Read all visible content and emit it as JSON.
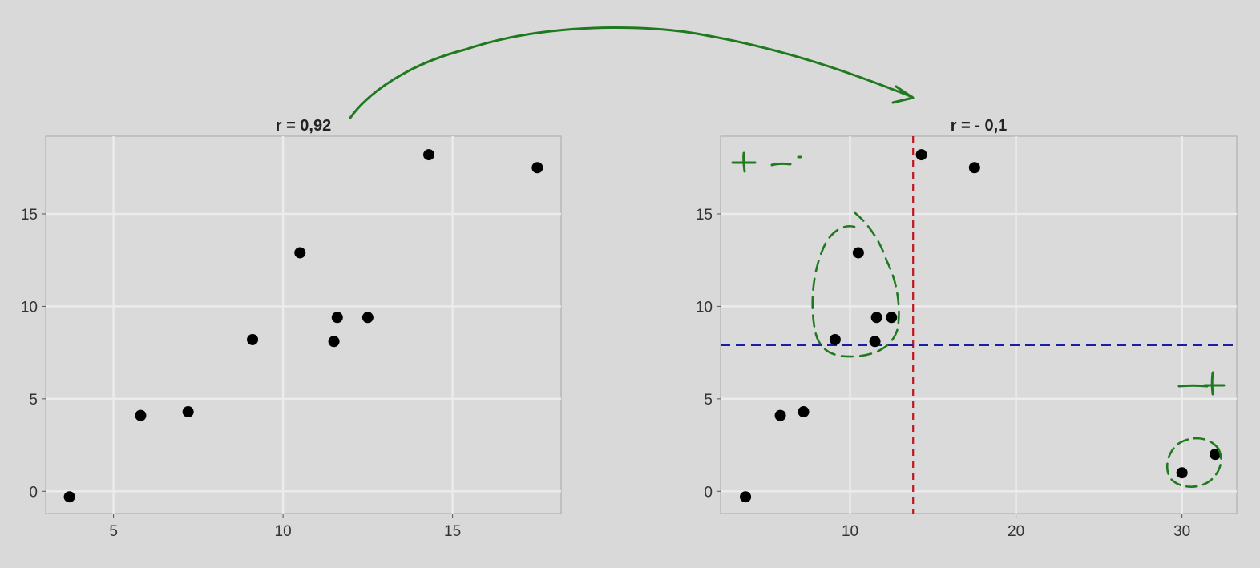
{
  "colors": {
    "background": "#d9d9d9",
    "panel": "#dadada",
    "gridline": "#ececec",
    "point": "#000000",
    "annotation": "#1f7a1f",
    "mean_x_line": "#c0141b",
    "mean_y_line": "#1c1ca6"
  },
  "chart_data": [
    {
      "type": "scatter",
      "title": "r = 0,92",
      "xlabel": "",
      "ylabel": "",
      "xlim": [
        3,
        18.2
      ],
      "ylim": [
        -1.2,
        19.2
      ],
      "x_ticks": [
        5,
        10,
        15
      ],
      "x_tick_labels": [
        "5",
        "10",
        "15"
      ],
      "y_ticks": [
        0,
        5,
        10,
        15
      ],
      "y_tick_labels": [
        "0",
        "5",
        "10",
        "15"
      ],
      "grid": true,
      "points": [
        {
          "x": 3.7,
          "y": -0.3
        },
        {
          "x": 5.8,
          "y": 4.1
        },
        {
          "x": 7.2,
          "y": 4.3
        },
        {
          "x": 9.1,
          "y": 8.2
        },
        {
          "x": 10.5,
          "y": 12.9
        },
        {
          "x": 11.5,
          "y": 8.1
        },
        {
          "x": 11.6,
          "y": 9.4
        },
        {
          "x": 12.5,
          "y": 9.4
        },
        {
          "x": 14.3,
          "y": 18.2
        },
        {
          "x": 17.5,
          "y": 17.5
        }
      ]
    },
    {
      "type": "scatter",
      "title": "r = - 0,1",
      "xlabel": "",
      "ylabel": "",
      "xlim": [
        2.2,
        33.3
      ],
      "ylim": [
        -1.2,
        19.2
      ],
      "x_ticks": [
        10,
        20,
        30
      ],
      "x_tick_labels": [
        "10",
        "20",
        "30"
      ],
      "y_ticks": [
        0,
        5,
        10,
        15
      ],
      "y_tick_labels": [
        "0",
        "5",
        "10",
        "15"
      ],
      "grid": true,
      "points": [
        {
          "x": 3.7,
          "y": -0.3
        },
        {
          "x": 5.8,
          "y": 4.1
        },
        {
          "x": 7.2,
          "y": 4.3
        },
        {
          "x": 9.1,
          "y": 8.2
        },
        {
          "x": 10.5,
          "y": 12.9
        },
        {
          "x": 11.5,
          "y": 8.1
        },
        {
          "x": 11.6,
          "y": 9.4
        },
        {
          "x": 12.5,
          "y": 9.4
        },
        {
          "x": 14.3,
          "y": 18.2
        },
        {
          "x": 17.5,
          "y": 17.5
        },
        {
          "x": 30,
          "y": 1
        },
        {
          "x": 32,
          "y": 2
        }
      ],
      "reference_lines": {
        "vertical_x": 13.8,
        "horizontal_y": 7.9
      }
    }
  ]
}
